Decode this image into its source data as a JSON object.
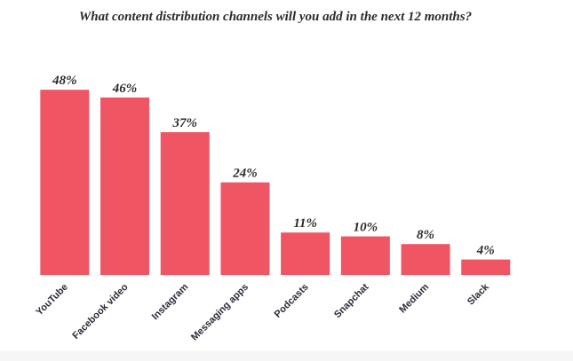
{
  "chart_data": {
    "type": "bar",
    "title": "What content distribution channels will you add in the next 12 months?",
    "categories": [
      "YouTube",
      "Facebook video",
      "Instagram",
      "Messaging apps",
      "Podcasts",
      "Snapchat",
      "Medium",
      "Slack"
    ],
    "values": [
      48,
      46,
      37,
      24,
      11,
      10,
      8,
      4
    ],
    "value_labels": [
      "48%",
      "46%",
      "37%",
      "24%",
      "11%",
      "10%",
      "8%",
      "4%"
    ],
    "color": "#ef5562"
  }
}
